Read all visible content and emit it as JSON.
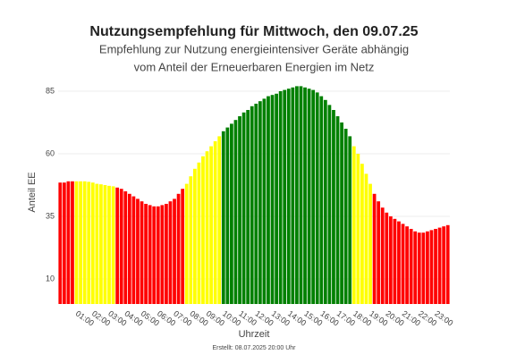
{
  "chart_data": {
    "type": "bar",
    "title": "Nutzungsempfehlung für Mittwoch, den 09.07.25",
    "subtitle": [
      "Empfehlung zur Nutzung energieintensiver Geräte abhängig",
      "vom Anteil der Erneuerbaren Energien im Netz"
    ],
    "x_label": "Uhrzeit",
    "y_label": "Anteil EE",
    "footer": "Erstellt: 08.07.2025 20:00 Uhr",
    "categories": [
      null,
      null,
      null,
      null,
      "01:00",
      null,
      null,
      null,
      "02:00",
      null,
      null,
      null,
      "03:00",
      null,
      null,
      null,
      "04:00",
      null,
      null,
      null,
      "05:00",
      null,
      null,
      null,
      "06:00",
      null,
      null,
      null,
      "07:00",
      null,
      null,
      null,
      "08:00",
      null,
      null,
      null,
      "09:00",
      null,
      null,
      null,
      "10:00",
      null,
      null,
      null,
      "11:00",
      null,
      null,
      null,
      "12:00",
      null,
      null,
      null,
      "13:00",
      null,
      null,
      null,
      "14:00",
      null,
      null,
      null,
      "15:00",
      null,
      null,
      null,
      "16:00",
      null,
      null,
      null,
      "17:00",
      null,
      null,
      null,
      "18:00",
      null,
      null,
      null,
      "19:00",
      null,
      null,
      null,
      "20:00",
      null,
      null,
      null,
      "21:00",
      null,
      null,
      null,
      "22:00",
      null,
      null,
      null,
      "23:00",
      null,
      null,
      null
    ],
    "values": [
      48.5,
      48.5,
      49,
      49,
      49,
      49,
      49,
      48.8,
      48.5,
      48,
      47.8,
      47.5,
      47.2,
      47,
      46.5,
      46,
      45,
      44,
      43,
      42,
      41,
      40,
      39.5,
      39,
      39,
      39.5,
      40,
      41,
      42,
      44,
      46,
      48,
      51,
      54,
      56.5,
      59,
      61,
      63,
      65,
      67,
      69,
      70.5,
      72,
      73.5,
      75,
      76.5,
      77.5,
      79,
      80,
      81,
      82,
      83,
      83.5,
      84,
      85,
      85.5,
      86,
      86.5,
      87,
      87,
      86.5,
      86,
      85.5,
      84.5,
      83,
      81.5,
      79.5,
      77.5,
      75,
      72.5,
      70,
      67,
      63,
      60,
      56,
      52,
      48,
      44,
      41,
      38.5,
      36.5,
      35,
      34,
      33,
      32,
      31,
      30,
      29,
      28.5,
      28.5,
      29,
      29.5,
      30,
      30.5,
      31,
      31.5
    ],
    "colors": [
      "#ff0000",
      "#ff0000",
      "#ff0000",
      "#ff0000",
      "#ffff00",
      "#ffff00",
      "#ffff00",
      "#ffff00",
      "#ffff00",
      "#ffff00",
      "#ffff00",
      "#ffff00",
      "#ffff00",
      "#ffff00",
      "#ff0000",
      "#ff0000",
      "#ff0000",
      "#ff0000",
      "#ff0000",
      "#ff0000",
      "#ff0000",
      "#ff0000",
      "#ff0000",
      "#ff0000",
      "#ff0000",
      "#ff0000",
      "#ff0000",
      "#ff0000",
      "#ff0000",
      "#ff0000",
      "#ff0000",
      "#ffff00",
      "#ffff00",
      "#ffff00",
      "#ffff00",
      "#ffff00",
      "#ffff00",
      "#ffff00",
      "#ffff00",
      "#ffff00",
      "#008000",
      "#008000",
      "#008000",
      "#008000",
      "#008000",
      "#008000",
      "#008000",
      "#008000",
      "#008000",
      "#008000",
      "#008000",
      "#008000",
      "#008000",
      "#008000",
      "#008000",
      "#008000",
      "#008000",
      "#008000",
      "#008000",
      "#008000",
      "#008000",
      "#008000",
      "#008000",
      "#008000",
      "#008000",
      "#008000",
      "#008000",
      "#008000",
      "#008000",
      "#008000",
      "#008000",
      "#008000",
      "#ffff00",
      "#ffff00",
      "#ffff00",
      "#ffff00",
      "#ffff00",
      "#ff0000",
      "#ff0000",
      "#ff0000",
      "#ff0000",
      "#ff0000",
      "#ff0000",
      "#ff0000",
      "#ff0000",
      "#ff0000",
      "#ff0000",
      "#ff0000",
      "#ff0000",
      "#ff0000",
      "#ff0000",
      "#ff0000",
      "#ff0000",
      "#ff0000",
      "#ff0000",
      "#ff0000"
    ],
    "ylim": [
      0,
      90
    ],
    "yticks": [
      10,
      35,
      60,
      85
    ],
    "grid": true
  }
}
